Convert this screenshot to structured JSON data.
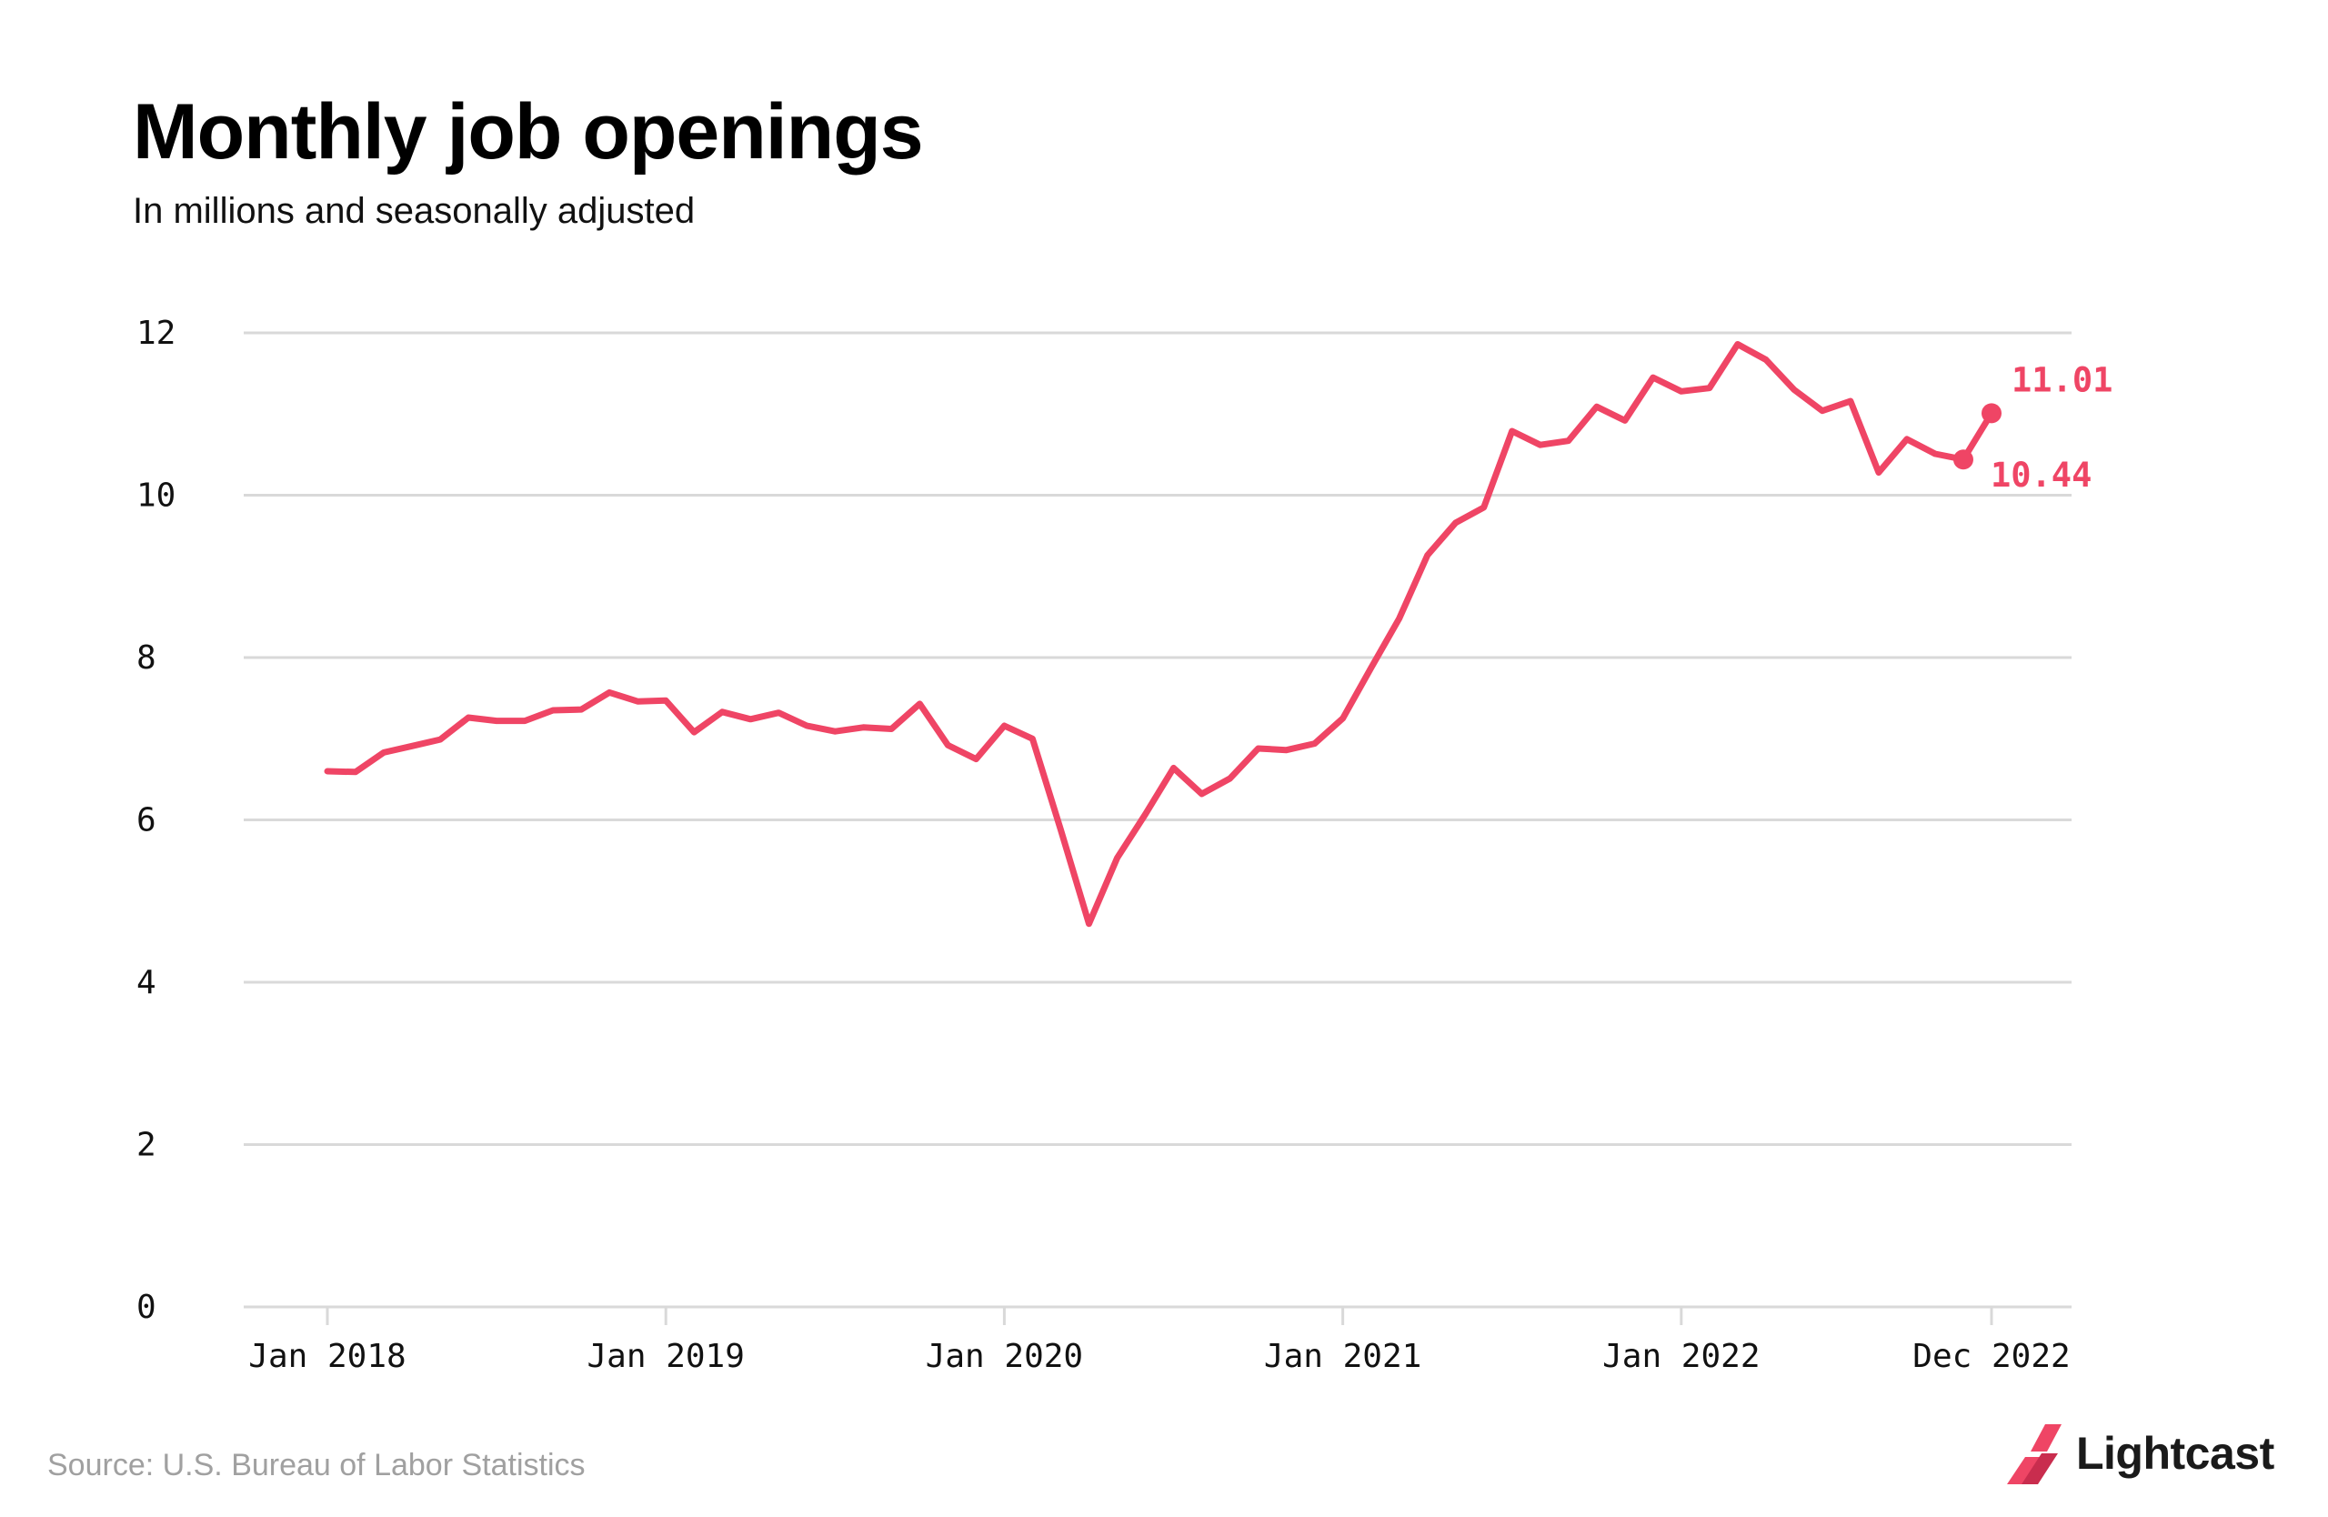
{
  "title": "Monthly job openings",
  "subtitle": "In millions and seasonally adjusted",
  "source": "Source: U.S. Bureau of Labor Statistics",
  "brand": {
    "name": "Lightcast",
    "icon": "lightcast-logo-icon"
  },
  "colors": {
    "line": "#ef4565",
    "grid": "#d9d9d9",
    "text": "#111111",
    "source": "#a0a0a0"
  },
  "chart_data": {
    "type": "line",
    "title": "Monthly job openings",
    "subtitle": "In millions and seasonally adjusted",
    "ylim": [
      0,
      12
    ],
    "y_ticks": [
      0,
      2,
      4,
      6,
      8,
      10,
      12
    ],
    "x_ticks": [
      "Jan 2018",
      "Jan 2019",
      "Jan 2020",
      "Jan 2021",
      "Jan 2022",
      "Dec 2022"
    ],
    "grid": true,
    "x": [
      "Jan 2018",
      "Feb 2018",
      "Mar 2018",
      "Apr 2018",
      "May 2018",
      "Jun 2018",
      "Jul 2018",
      "Aug 2018",
      "Sep 2018",
      "Oct 2018",
      "Nov 2018",
      "Dec 2018",
      "Jan 2019",
      "Feb 2019",
      "Mar 2019",
      "Apr 2019",
      "May 2019",
      "Jun 2019",
      "Jul 2019",
      "Aug 2019",
      "Sep 2019",
      "Oct 2019",
      "Nov 2019",
      "Dec 2019",
      "Jan 2020",
      "Feb 2020",
      "Mar 2020",
      "Apr 2020",
      "May 2020",
      "Jun 2020",
      "Jul 2020",
      "Aug 2020",
      "Sep 2020",
      "Oct 2020",
      "Nov 2020",
      "Dec 2020",
      "Jan 2021",
      "Feb 2021",
      "Mar 2021",
      "Apr 2021",
      "May 2021",
      "Jun 2021",
      "Jul 2021",
      "Aug 2021",
      "Sep 2021",
      "Oct 2021",
      "Nov 2021",
      "Dec 2021",
      "Jan 2022",
      "Feb 2022",
      "Mar 2022",
      "Apr 2022",
      "May 2022",
      "Jun 2022",
      "Jul 2022",
      "Aug 2022",
      "Sep 2022",
      "Oct 2022",
      "Nov 2022",
      "Dec 2022"
    ],
    "series": [
      {
        "values": [
          6.6,
          6.59,
          6.83,
          6.91,
          6.99,
          7.26,
          7.22,
          7.22,
          7.35,
          7.36,
          7.57,
          7.46,
          7.47,
          7.08,
          7.33,
          7.24,
          7.32,
          7.16,
          7.09,
          7.14,
          7.12,
          7.43,
          6.92,
          6.75,
          7.16,
          7.0,
          5.88,
          4.72,
          5.53,
          6.07,
          6.64,
          6.32,
          6.51,
          6.88,
          6.86,
          6.94,
          7.25,
          7.87,
          8.48,
          9.26,
          9.66,
          9.85,
          10.79,
          10.62,
          10.67,
          11.09,
          10.92,
          11.45,
          11.28,
          11.32,
          11.86,
          11.67,
          11.3,
          11.04,
          11.16,
          10.28,
          10.69,
          10.51,
          10.44,
          11.01
        ]
      }
    ],
    "annotations": [
      {
        "label": "11.01",
        "x": "Dec 2022",
        "y": 11.01
      },
      {
        "label": "10.44",
        "x": "Nov 2022",
        "y": 10.44
      }
    ]
  }
}
